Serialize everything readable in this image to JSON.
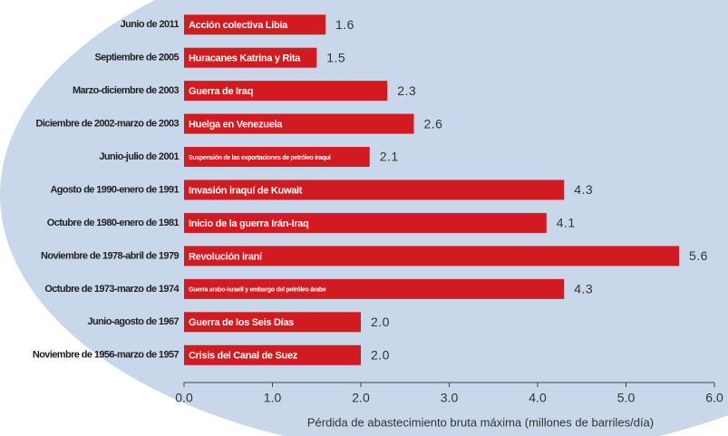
{
  "chart_data": {
    "type": "barh",
    "categories": [
      "Junio de 2011",
      "Septiembre de 2005",
      "Marzo-diciembre de 2003",
      "Diciembre de 2002-marzo de 2003",
      "Junio-julio de 2001",
      "Agosto de 1990-enero de 1991",
      "Octubre de 1980-enero de 1981",
      "Noviembre de 1978-abril de 1979",
      "Octubre de 1973-marzo de 1974",
      "Junio-agosto de 1967",
      "Noviembre de 1956-marzo de 1957"
    ],
    "bar_labels": [
      "Acción colectiva Libia",
      "Huracanes Katrina y Rita",
      "Guerra de Iraq",
      "Huelga en Venezuela",
      "Suspensión de las exportaciones de petróleo iraquí",
      "Invasión iraquí de Kuwait",
      "Inicio de la guerra Irán-Iraq",
      "Revolución iraní",
      "Guerra arabo-israelí y embargo del petróleo árabe",
      "Guerra de los Seis Días",
      "Crisis del Canal de Suez"
    ],
    "values": [
      1.6,
      1.5,
      2.3,
      2.6,
      2.1,
      4.3,
      4.1,
      5.6,
      4.3,
      2.0,
      2.0
    ],
    "value_labels": [
      "1.6",
      "1.5",
      "2.3",
      "2.6",
      "2.1",
      "4.3",
      "4.1",
      "5.6",
      "4.3",
      "2.0",
      "2.0"
    ],
    "color": "#d11b20",
    "xlabel": "Pérdida de abastecimiento bruta máxima (millones de barriles/día)",
    "xlim": [
      0,
      6
    ],
    "xticks": [
      {
        "value": 0,
        "label": "0.0"
      },
      {
        "value": 1,
        "label": "1.0"
      },
      {
        "value": 2,
        "label": "2.0"
      },
      {
        "value": 3,
        "label": "3.0"
      },
      {
        "value": 4,
        "label": "4.0"
      },
      {
        "value": 5,
        "label": "5.0"
      },
      {
        "value": 6,
        "label": "6.0"
      }
    ]
  }
}
